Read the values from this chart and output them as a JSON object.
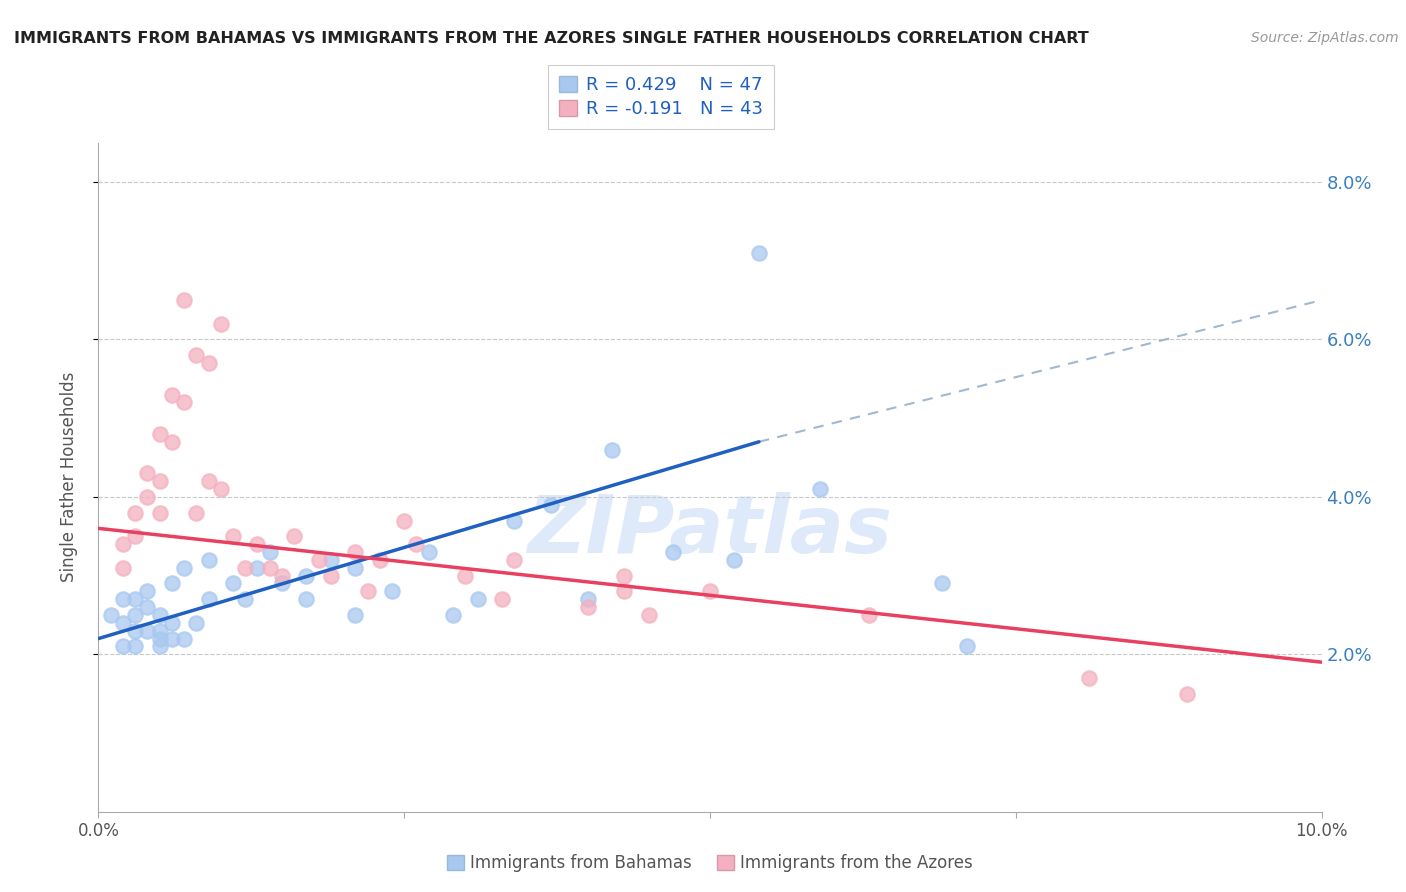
{
  "title": "IMMIGRANTS FROM BAHAMAS VS IMMIGRANTS FROM THE AZORES SINGLE FATHER HOUSEHOLDS CORRELATION CHART",
  "source": "Source: ZipAtlas.com",
  "ylabel": "Single Father Households",
  "legend_blue_label": "Immigrants from Bahamas",
  "legend_pink_label": "Immigrants from the Azores",
  "legend_blue_R": "R = 0.429",
  "legend_blue_N": "N = 47",
  "legend_pink_R": "R = -0.191",
  "legend_pink_N": "N = 43",
  "watermark": "ZIPatlas",
  "x_min": 0.0,
  "x_max": 0.1,
  "y_min": 0.0,
  "y_max": 0.085,
  "yticks": [
    0.02,
    0.04,
    0.06,
    0.08
  ],
  "ytick_labels": [
    "2.0%",
    "4.0%",
    "6.0%",
    "8.0%"
  ],
  "xticks": [
    0.0,
    0.025,
    0.05,
    0.075,
    0.1
  ],
  "xtick_labels": [
    "0.0%",
    "",
    "",
    "",
    "10.0%"
  ],
  "blue_color": "#a8c8f0",
  "pink_color": "#f4b0c0",
  "blue_line_color": "#2060c0",
  "pink_line_color": "#e8406080",
  "pink_line_solid": "#e84060",
  "dashed_line_color": "#a0b8d0",
  "grid_color": "#c8c8c8",
  "blue_scatter": [
    [
      0.001,
      0.025
    ],
    [
      0.002,
      0.024
    ],
    [
      0.002,
      0.027
    ],
    [
      0.002,
      0.021
    ],
    [
      0.003,
      0.025
    ],
    [
      0.003,
      0.023
    ],
    [
      0.003,
      0.027
    ],
    [
      0.003,
      0.021
    ],
    [
      0.004,
      0.026
    ],
    [
      0.004,
      0.023
    ],
    [
      0.004,
      0.028
    ],
    [
      0.005,
      0.025
    ],
    [
      0.005,
      0.023
    ],
    [
      0.005,
      0.021
    ],
    [
      0.005,
      0.022
    ],
    [
      0.006,
      0.024
    ],
    [
      0.006,
      0.022
    ],
    [
      0.006,
      0.029
    ],
    [
      0.007,
      0.031
    ],
    [
      0.007,
      0.022
    ],
    [
      0.008,
      0.024
    ],
    [
      0.009,
      0.027
    ],
    [
      0.009,
      0.032
    ],
    [
      0.011,
      0.029
    ],
    [
      0.012,
      0.027
    ],
    [
      0.013,
      0.031
    ],
    [
      0.014,
      0.033
    ],
    [
      0.015,
      0.029
    ],
    [
      0.017,
      0.03
    ],
    [
      0.017,
      0.027
    ],
    [
      0.019,
      0.032
    ],
    [
      0.021,
      0.025
    ],
    [
      0.021,
      0.031
    ],
    [
      0.024,
      0.028
    ],
    [
      0.027,
      0.033
    ],
    [
      0.029,
      0.025
    ],
    [
      0.031,
      0.027
    ],
    [
      0.034,
      0.037
    ],
    [
      0.037,
      0.039
    ],
    [
      0.04,
      0.027
    ],
    [
      0.042,
      0.046
    ],
    [
      0.047,
      0.033
    ],
    [
      0.052,
      0.032
    ],
    [
      0.054,
      0.071
    ],
    [
      0.059,
      0.041
    ],
    [
      0.069,
      0.029
    ],
    [
      0.071,
      0.021
    ]
  ],
  "pink_scatter": [
    [
      0.002,
      0.031
    ],
    [
      0.002,
      0.034
    ],
    [
      0.003,
      0.038
    ],
    [
      0.003,
      0.035
    ],
    [
      0.004,
      0.04
    ],
    [
      0.004,
      0.043
    ],
    [
      0.005,
      0.042
    ],
    [
      0.005,
      0.048
    ],
    [
      0.005,
      0.038
    ],
    [
      0.006,
      0.047
    ],
    [
      0.006,
      0.053
    ],
    [
      0.007,
      0.052
    ],
    [
      0.007,
      0.065
    ],
    [
      0.008,
      0.058
    ],
    [
      0.008,
      0.038
    ],
    [
      0.009,
      0.042
    ],
    [
      0.009,
      0.057
    ],
    [
      0.01,
      0.062
    ],
    [
      0.01,
      0.041
    ],
    [
      0.011,
      0.035
    ],
    [
      0.012,
      0.031
    ],
    [
      0.013,
      0.034
    ],
    [
      0.014,
      0.031
    ],
    [
      0.015,
      0.03
    ],
    [
      0.016,
      0.035
    ],
    [
      0.018,
      0.032
    ],
    [
      0.019,
      0.03
    ],
    [
      0.021,
      0.033
    ],
    [
      0.022,
      0.028
    ],
    [
      0.023,
      0.032
    ],
    [
      0.025,
      0.037
    ],
    [
      0.026,
      0.034
    ],
    [
      0.03,
      0.03
    ],
    [
      0.033,
      0.027
    ],
    [
      0.034,
      0.032
    ],
    [
      0.04,
      0.026
    ],
    [
      0.043,
      0.028
    ],
    [
      0.045,
      0.025
    ],
    [
      0.05,
      0.028
    ],
    [
      0.063,
      0.025
    ],
    [
      0.081,
      0.017
    ],
    [
      0.089,
      0.015
    ],
    [
      0.043,
      0.03
    ]
  ],
  "blue_line_x": [
    0.0,
    0.054
  ],
  "blue_line_y": [
    0.022,
    0.047
  ],
  "pink_line_x": [
    0.0,
    0.1
  ],
  "pink_line_y": [
    0.036,
    0.019
  ],
  "dashed_line_x": [
    0.054,
    0.1
  ],
  "dashed_line_y": [
    0.047,
    0.065
  ]
}
